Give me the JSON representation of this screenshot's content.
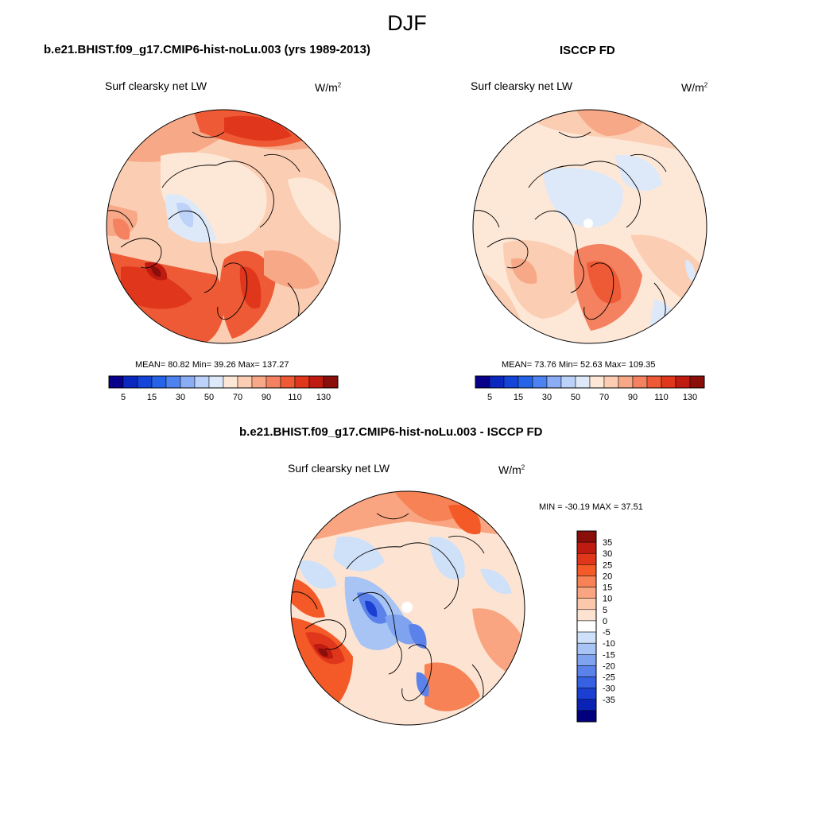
{
  "figure": {
    "season": "DJF"
  },
  "panels": [
    {
      "title": "b.e21.BHIST.f09_g17.CMIP6-hist-noLu.003 (yrs 1989-2013)",
      "variable": "Surf clearsky net LW",
      "units_base": "W/m",
      "units_exp": "2",
      "stats": "MEAN=  80.82  Min=  39.26  Max= 137.27",
      "colorbar": {
        "colors": [
          "#08008a",
          "#0a28c0",
          "#1445d8",
          "#2563e8",
          "#4d82f0",
          "#8aadf5",
          "#bcd2f8",
          "#dde9f9",
          "#fde8d8",
          "#fbcdb2",
          "#f7a887",
          "#f48160",
          "#ee5a35",
          "#e0361b",
          "#bf1b10",
          "#8a0f0a"
        ],
        "ticks": [
          "5",
          "15",
          "30",
          "50",
          "70",
          "90",
          "110",
          "130"
        ]
      }
    },
    {
      "title": "ISCCP FD",
      "variable": "Surf clearsky net LW",
      "units_base": "W/m",
      "units_exp": "2",
      "stats": "MEAN=  73.76  Min=  52.63  Max= 109.35",
      "colorbar": {
        "colors": [
          "#08008a",
          "#0a28c0",
          "#1445d8",
          "#2563e8",
          "#4d82f0",
          "#8aadf5",
          "#bcd2f8",
          "#dde9f9",
          "#fde8d8",
          "#fbcdb2",
          "#f7a887",
          "#f48160",
          "#ee5a35",
          "#e0361b",
          "#bf1b10",
          "#8a0f0a"
        ],
        "ticks": [
          "5",
          "15",
          "30",
          "50",
          "70",
          "90",
          "110",
          "130"
        ]
      }
    },
    {
      "title": "b.e21.BHIST.f09_g17.CMIP6-hist-noLu.003 - ISCCP FD",
      "variable": "Surf clearsky net LW",
      "units_base": "W/m",
      "units_exp": "2",
      "stats": "MIN = -30.19 MAX =  37.51",
      "colorbar": {
        "colors": [
          "#8a0f0a",
          "#bf1b10",
          "#e0361b",
          "#f45a28",
          "#f78256",
          "#f9a582",
          "#fbc8ab",
          "#fde4d2",
          "#ffffff",
          "#cfe0f9",
          "#a8c4f4",
          "#7fa3ef",
          "#5a82ea",
          "#3561e2",
          "#1a3fd2",
          "#0a23b5",
          "#03007e"
        ],
        "labels": [
          "35",
          "30",
          "25",
          "20",
          "15",
          "10",
          "5",
          "0",
          "-5",
          "-10",
          "-15",
          "-20",
          "-25",
          "-30",
          "-35"
        ]
      }
    }
  ]
}
